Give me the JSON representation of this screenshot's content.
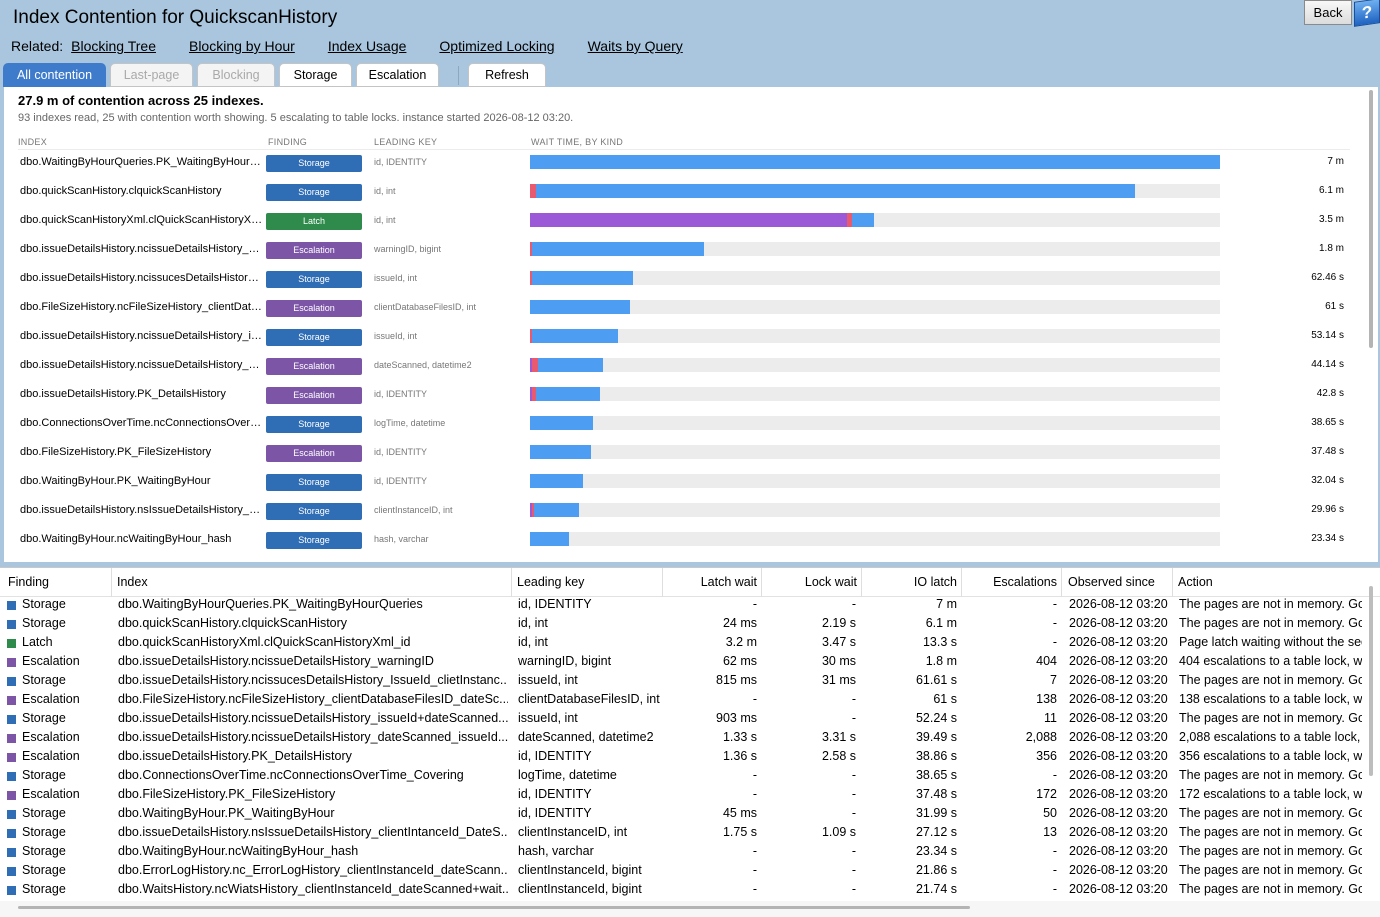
{
  "title": "Index Contention for QuickscanHistory",
  "back_label": "Back",
  "help_label": "?",
  "related": {
    "label": "Related:",
    "links": [
      "Blocking Tree",
      "Blocking by Hour",
      "Index Usage",
      "Optimized Locking",
      "Waits by Query"
    ]
  },
  "tabs": [
    {
      "label": "All contention",
      "state": "active"
    },
    {
      "label": "Last-page",
      "state": "disabled"
    },
    {
      "label": "Blocking",
      "state": "disabled"
    },
    {
      "label": "Storage",
      "state": "normal"
    },
    {
      "label": "Escalation",
      "state": "normal"
    },
    {
      "label": "Refresh",
      "state": "normal"
    }
  ],
  "colors": {
    "Storage": "#2f6db5",
    "Latch": "#2e8b4b",
    "Escalation": "#7d55a7",
    "bar_io": "#4d9df2",
    "bar_lock": "#e85a70",
    "bar_latch": "#9b59d8"
  },
  "summary": {
    "title": "27.9 m of contention across 25 indexes.",
    "subtitle": "93 indexes read, 25 with contention worth showing. 5 escalating to table locks. instance started 2026-08-12 03:20.",
    "col_index": "INDEX",
    "col_finding": "FINDING",
    "col_key": "LEADING KEY",
    "col_wait": "WAIT TIME, BY KIND"
  },
  "chart_data": {
    "type": "bar",
    "orientation": "horizontal",
    "stacked": true,
    "unit": "fraction of max wait",
    "rows": [
      {
        "index": "dbo.WaitingByHourQueries.PK_WaitingByHourQueries",
        "finding": "Storage",
        "key": "id, IDENTITY",
        "total": "7 m",
        "latch": 0,
        "lock": 0,
        "io": 1.0
      },
      {
        "index": "dbo.quickScanHistory.clquickScanHistory",
        "finding": "Storage",
        "key": "id, int",
        "total": "6.1 m",
        "latch": 0,
        "lock": 0.008,
        "io": 0.869
      },
      {
        "index": "dbo.quickScanHistoryXml.clQuickScanHistoryXml_id",
        "finding": "Latch",
        "key": "id, int",
        "total": "3.5 m",
        "latch": 0.459,
        "lock": 0.008,
        "io": 0.032
      },
      {
        "index": "dbo.issueDetailsHistory.ncissueDetailsHistory_warningID",
        "finding": "Escalation",
        "key": "warningID, bigint",
        "total": "1.8 m",
        "latch": 0,
        "lock": 0.003,
        "io": 0.249
      },
      {
        "index": "dbo.issueDetailsHistory.ncissucesDetailsHistory_IssueId_clietInstanceId",
        "finding": "Storage",
        "key": "issueId, int",
        "total": "62.46 s",
        "latch": 0,
        "lock": 0.003,
        "io": 0.146
      },
      {
        "index": "dbo.FileSizeHistory.ncFileSizeHistory_clientDatabaseFilesID_dateScanned",
        "finding": "Escalation",
        "key": "clientDatabaseFilesID, int",
        "total": "61 s",
        "latch": 0,
        "lock": 0,
        "io": 0.145
      },
      {
        "index": "dbo.issueDetailsHistory.ncissueDetailsHistory_issueId+dateScanned",
        "finding": "Storage",
        "key": "issueId, int",
        "total": "53.14 s",
        "latch": 0,
        "lock": 0.003,
        "io": 0.124
      },
      {
        "index": "dbo.issueDetailsHistory.ncissueDetailsHistory_dateScanned_issueId",
        "finding": "Escalation",
        "key": "dateScanned, datetime2",
        "total": "44.14 s",
        "latch": 0.003,
        "lock": 0.008,
        "io": 0.095
      },
      {
        "index": "dbo.issueDetailsHistory.PK_DetailsHistory",
        "finding": "Escalation",
        "key": "id, IDENTITY",
        "total": "42.8 s",
        "latch": 0.003,
        "lock": 0.006,
        "io": 0.093
      },
      {
        "index": "dbo.ConnectionsOverTime.ncConnectionsOverTime_Covering",
        "finding": "Storage",
        "key": "logTime, datetime",
        "total": "38.65 s",
        "latch": 0,
        "lock": 0,
        "io": 0.092
      },
      {
        "index": "dbo.FileSizeHistory.PK_FileSizeHistory",
        "finding": "Escalation",
        "key": "id, IDENTITY",
        "total": "37.48 s",
        "latch": 0,
        "lock": 0,
        "io": 0.089
      },
      {
        "index": "dbo.WaitingByHour.PK_WaitingByHour",
        "finding": "Storage",
        "key": "id, IDENTITY",
        "total": "32.04 s",
        "latch": 0,
        "lock": 0,
        "io": 0.077
      },
      {
        "index": "dbo.issueDetailsHistory.nsIssueDetailsHistory_clientIntanceId_DateScanned",
        "finding": "Storage",
        "key": "clientInstanceID, int",
        "total": "29.96 s",
        "latch": 0.003,
        "lock": 0.003,
        "io": 0.065
      },
      {
        "index": "dbo.WaitingByHour.ncWaitingByHour_hash",
        "finding": "Storage",
        "key": "hash, varchar",
        "total": "23.34 s",
        "latch": 0,
        "lock": 0,
        "io": 0.056
      }
    ]
  },
  "grid": {
    "headers": {
      "finding": "Finding",
      "index": "Index",
      "key": "Leading key",
      "latch": "Latch wait",
      "lock": "Lock wait",
      "io": "IO latch",
      "esc": "Escalations",
      "observed": "Observed since",
      "action": "Action"
    },
    "rows": [
      {
        "finding": "Storage",
        "index": "dbo.WaitingByHourQueries.PK_WaitingByHourQueries",
        "key": "id, IDENTITY",
        "latch": "-",
        "lock": "-",
        "io": "7 m",
        "esc": "-",
        "observed": "2026-08-12 03:20",
        "action": "The pages are not in memory. Go"
      },
      {
        "finding": "Storage",
        "index": "dbo.quickScanHistory.clquickScanHistory",
        "key": "id, int",
        "latch": "24 ms",
        "lock": "2.19 s",
        "io": "6.1 m",
        "esc": "-",
        "observed": "2026-08-12 03:20",
        "action": "The pages are not in memory. Go"
      },
      {
        "finding": "Latch",
        "index": "dbo.quickScanHistoryXml.clQuickScanHistoryXml_id",
        "key": "id, int",
        "latch": "3.2 m",
        "lock": "3.47 s",
        "io": "13.3 s",
        "esc": "-",
        "observed": "2026-08-12 03:20",
        "action": "Page latch waiting without the sec"
      },
      {
        "finding": "Escalation",
        "index": "dbo.issueDetailsHistory.ncissueDetailsHistory_warningID",
        "key": "warningID, bigint",
        "latch": "62 ms",
        "lock": "30 ms",
        "io": "1.8 m",
        "esc": "404",
        "observed": "2026-08-12 03:20",
        "action": "404 escalations to a table lock, wh"
      },
      {
        "finding": "Storage",
        "index": "dbo.issueDetailsHistory.ncissucesDetailsHistory_IssueId_clietInstanc...",
        "key": "issueId, int",
        "latch": "815 ms",
        "lock": "31 ms",
        "io": "61.61 s",
        "esc": "7",
        "observed": "2026-08-12 03:20",
        "action": "The pages are not in memory. Go"
      },
      {
        "finding": "Escalation",
        "index": "dbo.FileSizeHistory.ncFileSizeHistory_clientDatabaseFilesID_dateSc...",
        "key": "clientDatabaseFilesID, int",
        "latch": "-",
        "lock": "-",
        "io": "61 s",
        "esc": "138",
        "observed": "2026-08-12 03:20",
        "action": "138 escalations to a table lock, wh"
      },
      {
        "finding": "Storage",
        "index": "dbo.issueDetailsHistory.ncissueDetailsHistory_issueId+dateScanned...",
        "key": "issueId, int",
        "latch": "903 ms",
        "lock": "-",
        "io": "52.24 s",
        "esc": "11",
        "observed": "2026-08-12 03:20",
        "action": "The pages are not in memory. Go"
      },
      {
        "finding": "Escalation",
        "index": "dbo.issueDetailsHistory.ncissueDetailsHistory_dateScanned_issueId...",
        "key": "dateScanned, datetime2",
        "latch": "1.33 s",
        "lock": "3.31 s",
        "io": "39.49 s",
        "esc": "2,088",
        "observed": "2026-08-12 03:20",
        "action": "2,088 escalations to a table lock, w"
      },
      {
        "finding": "Escalation",
        "index": "dbo.issueDetailsHistory.PK_DetailsHistory",
        "key": "id, IDENTITY",
        "latch": "1.36 s",
        "lock": "2.58 s",
        "io": "38.86 s",
        "esc": "356",
        "observed": "2026-08-12 03:20",
        "action": "356 escalations to a table lock, wh"
      },
      {
        "finding": "Storage",
        "index": "dbo.ConnectionsOverTime.ncConnectionsOverTime_Covering",
        "key": "logTime, datetime",
        "latch": "-",
        "lock": "-",
        "io": "38.65 s",
        "esc": "-",
        "observed": "2026-08-12 03:20",
        "action": "The pages are not in memory. Go"
      },
      {
        "finding": "Escalation",
        "index": "dbo.FileSizeHistory.PK_FileSizeHistory",
        "key": "id, IDENTITY",
        "latch": "-",
        "lock": "-",
        "io": "37.48 s",
        "esc": "172",
        "observed": "2026-08-12 03:20",
        "action": "172 escalations to a table lock, wh"
      },
      {
        "finding": "Storage",
        "index": "dbo.WaitingByHour.PK_WaitingByHour",
        "key": "id, IDENTITY",
        "latch": "45 ms",
        "lock": "-",
        "io": "31.99 s",
        "esc": "50",
        "observed": "2026-08-12 03:20",
        "action": "The pages are not in memory. Go"
      },
      {
        "finding": "Storage",
        "index": "dbo.issueDetailsHistory.nsIssueDetailsHistory_clientIntanceId_DateS...",
        "key": "clientInstanceID, int",
        "latch": "1.75 s",
        "lock": "1.09 s",
        "io": "27.12 s",
        "esc": "13",
        "observed": "2026-08-12 03:20",
        "action": "The pages are not in memory. Go"
      },
      {
        "finding": "Storage",
        "index": "dbo.WaitingByHour.ncWaitingByHour_hash",
        "key": "hash, varchar",
        "latch": "-",
        "lock": "-",
        "io": "23.34 s",
        "esc": "-",
        "observed": "2026-08-12 03:20",
        "action": "The pages are not in memory. Go"
      },
      {
        "finding": "Storage",
        "index": "dbo.ErrorLogHistory.nc_ErrorLogHistory_clientInstanceId_dateScann...",
        "key": "clientInstanceId, bigint",
        "latch": "-",
        "lock": "-",
        "io": "21.86 s",
        "esc": "-",
        "observed": "2026-08-12 03:20",
        "action": "The pages are not in memory. Go"
      },
      {
        "finding": "Storage",
        "index": "dbo.WaitsHistory.ncWiatsHistory_clientInstanceId_dateScanned+wait...",
        "key": "clientInstanceId, bigint",
        "latch": "-",
        "lock": "-",
        "io": "21.74 s",
        "esc": "-",
        "observed": "2026-08-12 03:20",
        "action": "The pages are not in memory. Go"
      }
    ]
  }
}
